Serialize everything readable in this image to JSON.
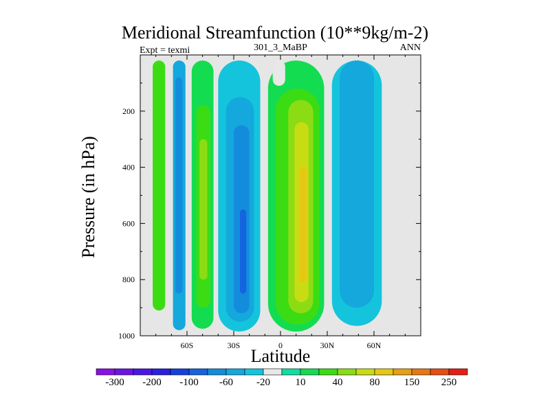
{
  "chart_data": {
    "type": "heatmap",
    "plot_kind": "filled-contour",
    "title": "Meridional Streamfunction (10**9kg/m-2)",
    "left_subtitle": "Expt = texmi",
    "center_subtitle": "301_3_MaBP",
    "right_subtitle": "ANN",
    "xlabel": "Latitude",
    "ylabel": "Pressure (in hPa)",
    "xlim": [
      -90,
      90
    ],
    "ylim": [
      1000,
      0
    ],
    "x_ticks": [
      {
        "value": -60,
        "label": "60S"
      },
      {
        "value": -30,
        "label": "30S"
      },
      {
        "value": 0,
        "label": "0"
      },
      {
        "value": 30,
        "label": "30N"
      },
      {
        "value": 60,
        "label": "60N"
      }
    ],
    "y_ticks": [
      {
        "value": 200,
        "label": "200"
      },
      {
        "value": 400,
        "label": "400"
      },
      {
        "value": 600,
        "label": "600"
      },
      {
        "value": 800,
        "label": "800"
      },
      {
        "value": 1000,
        "label": "1000"
      }
    ],
    "missing_color": "#e6e6e6",
    "colorbar": {
      "colors": [
        "#8a10e6",
        "#6a14e6",
        "#4a18e6",
        "#2a20e0",
        "#1440e0",
        "#1464e0",
        "#148cdc",
        "#14a8dc",
        "#14c4dc",
        "#e8e8e8",
        "#14dca0",
        "#14dc50",
        "#3cdc14",
        "#8cdc14",
        "#c8dc14",
        "#e6c814",
        "#e6a014",
        "#e67814",
        "#e64e14",
        "#e61e14"
      ],
      "labels": [
        {
          "after_index": 0,
          "text": "-300"
        },
        {
          "after_index": 2,
          "text": "-200"
        },
        {
          "after_index": 4,
          "text": "-100"
        },
        {
          "after_index": 6,
          "text": "-60"
        },
        {
          "after_index": 8,
          "text": "-20"
        },
        {
          "after_index": 10,
          "text": "10"
        },
        {
          "after_index": 12,
          "text": "40"
        },
        {
          "after_index": 14,
          "text": "80"
        },
        {
          "after_index": 16,
          "text": "150"
        },
        {
          "after_index": 18,
          "text": "250"
        }
      ]
    },
    "cells": [
      {
        "name": "cell-80s-positive",
        "lat": [
          -82,
          -74
        ],
        "p": [
          20,
          910
        ],
        "level": 12
      },
      {
        "name": "cell-65s-negative",
        "lat": [
          -69,
          -61
        ],
        "p": [
          20,
          980
        ],
        "level": 7
      },
      {
        "name": "cell-65s-core",
        "lat": [
          -67.5,
          -63
        ],
        "p": [
          80,
          850
        ],
        "level": 6
      },
      {
        "name": "cell-45s-positive",
        "lat": [
          -57,
          -43
        ],
        "p": [
          20,
          975
        ],
        "level": 11
      },
      {
        "name": "cell-45s-core",
        "lat": [
          -54,
          -45
        ],
        "p": [
          180,
          900
        ],
        "level": 12
      },
      {
        "name": "cell-45s-inner",
        "lat": [
          -52,
          -47
        ],
        "p": [
          300,
          800
        ],
        "level": 13
      },
      {
        "name": "cell-20s-negative",
        "lat": [
          -40,
          -13
        ],
        "p": [
          20,
          985
        ],
        "level": 8
      },
      {
        "name": "cell-20s-mid",
        "lat": [
          -35,
          -17
        ],
        "p": [
          150,
          950
        ],
        "level": 7
      },
      {
        "name": "cell-20s-core",
        "lat": [
          -30,
          -20
        ],
        "p": [
          250,
          920
        ],
        "level": 6
      },
      {
        "name": "cell-20s-inner",
        "lat": [
          -26,
          -22
        ],
        "p": [
          550,
          850
        ],
        "level": 5
      },
      {
        "name": "cell-10n-positive",
        "lat": [
          -8,
          28
        ],
        "p": [
          20,
          985
        ],
        "level": 11
      },
      {
        "name": "cell-10n-mid",
        "lat": [
          -3,
          25
        ],
        "p": [
          120,
          960
        ],
        "level": 12
      },
      {
        "name": "cell-10n-core",
        "lat": [
          5,
          21
        ],
        "p": [
          160,
          920
        ],
        "level": 13
      },
      {
        "name": "cell-10n-inner",
        "lat": [
          9,
          18
        ],
        "p": [
          240,
          880
        ],
        "level": 14
      },
      {
        "name": "cell-10n-center",
        "lat": [
          12,
          17
        ],
        "p": [
          400,
          810
        ],
        "level": 15
      },
      {
        "name": "cell-45n-negative",
        "lat": [
          33,
          65
        ],
        "p": [
          20,
          965
        ],
        "level": 8
      },
      {
        "name": "cell-45n-core",
        "lat": [
          38,
          60
        ],
        "p": [
          20,
          900
        ],
        "level": 7
      },
      {
        "name": "cell-polar-small",
        "lat": [
          -5,
          3
        ],
        "p": [
          20,
          110
        ],
        "level": 9
      }
    ]
  }
}
